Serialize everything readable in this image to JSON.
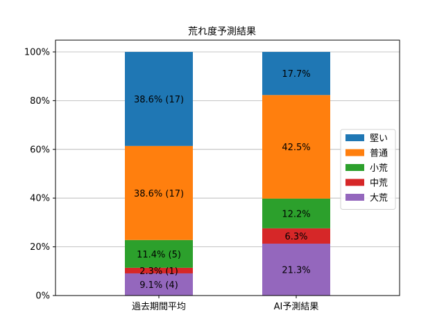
{
  "chart_data": {
    "type": "bar",
    "stacked": true,
    "title": "荒れ度予測結果",
    "xlabel": "",
    "ylabel": "",
    "categories": [
      "過去期間平均",
      "AI予測結果"
    ],
    "ylim": [
      0,
      100
    ],
    "y_ticks": [
      0,
      20,
      40,
      60,
      80,
      100
    ],
    "y_tick_labels": [
      "0%",
      "20%",
      "40%",
      "60%",
      "80%",
      "100%"
    ],
    "grid": "horizontal",
    "legend_position": "right",
    "series": [
      {
        "name": "大荒",
        "color": "#9467bd",
        "values": [
          9.1,
          21.3
        ],
        "labels": [
          "9.1% (4)",
          "21.3%"
        ]
      },
      {
        "name": "中荒",
        "color": "#d62728",
        "values": [
          2.3,
          6.3
        ],
        "labels": [
          "2.3% (1)",
          "6.3%"
        ]
      },
      {
        "name": "小荒",
        "color": "#2ca02c",
        "values": [
          11.4,
          12.2
        ],
        "labels": [
          "11.4% (5)",
          "12.2%"
        ]
      },
      {
        "name": "普通",
        "color": "#ff7f0e",
        "values": [
          38.6,
          42.5
        ],
        "labels": [
          "38.6% (17)",
          "42.5%"
        ]
      },
      {
        "name": "堅い",
        "color": "#1f77b4",
        "values": [
          38.6,
          17.7
        ],
        "labels": [
          "38.6% (17)",
          "17.7%"
        ]
      }
    ],
    "legend_order": [
      "堅い",
      "普通",
      "小荒",
      "中荒",
      "大荒"
    ]
  }
}
